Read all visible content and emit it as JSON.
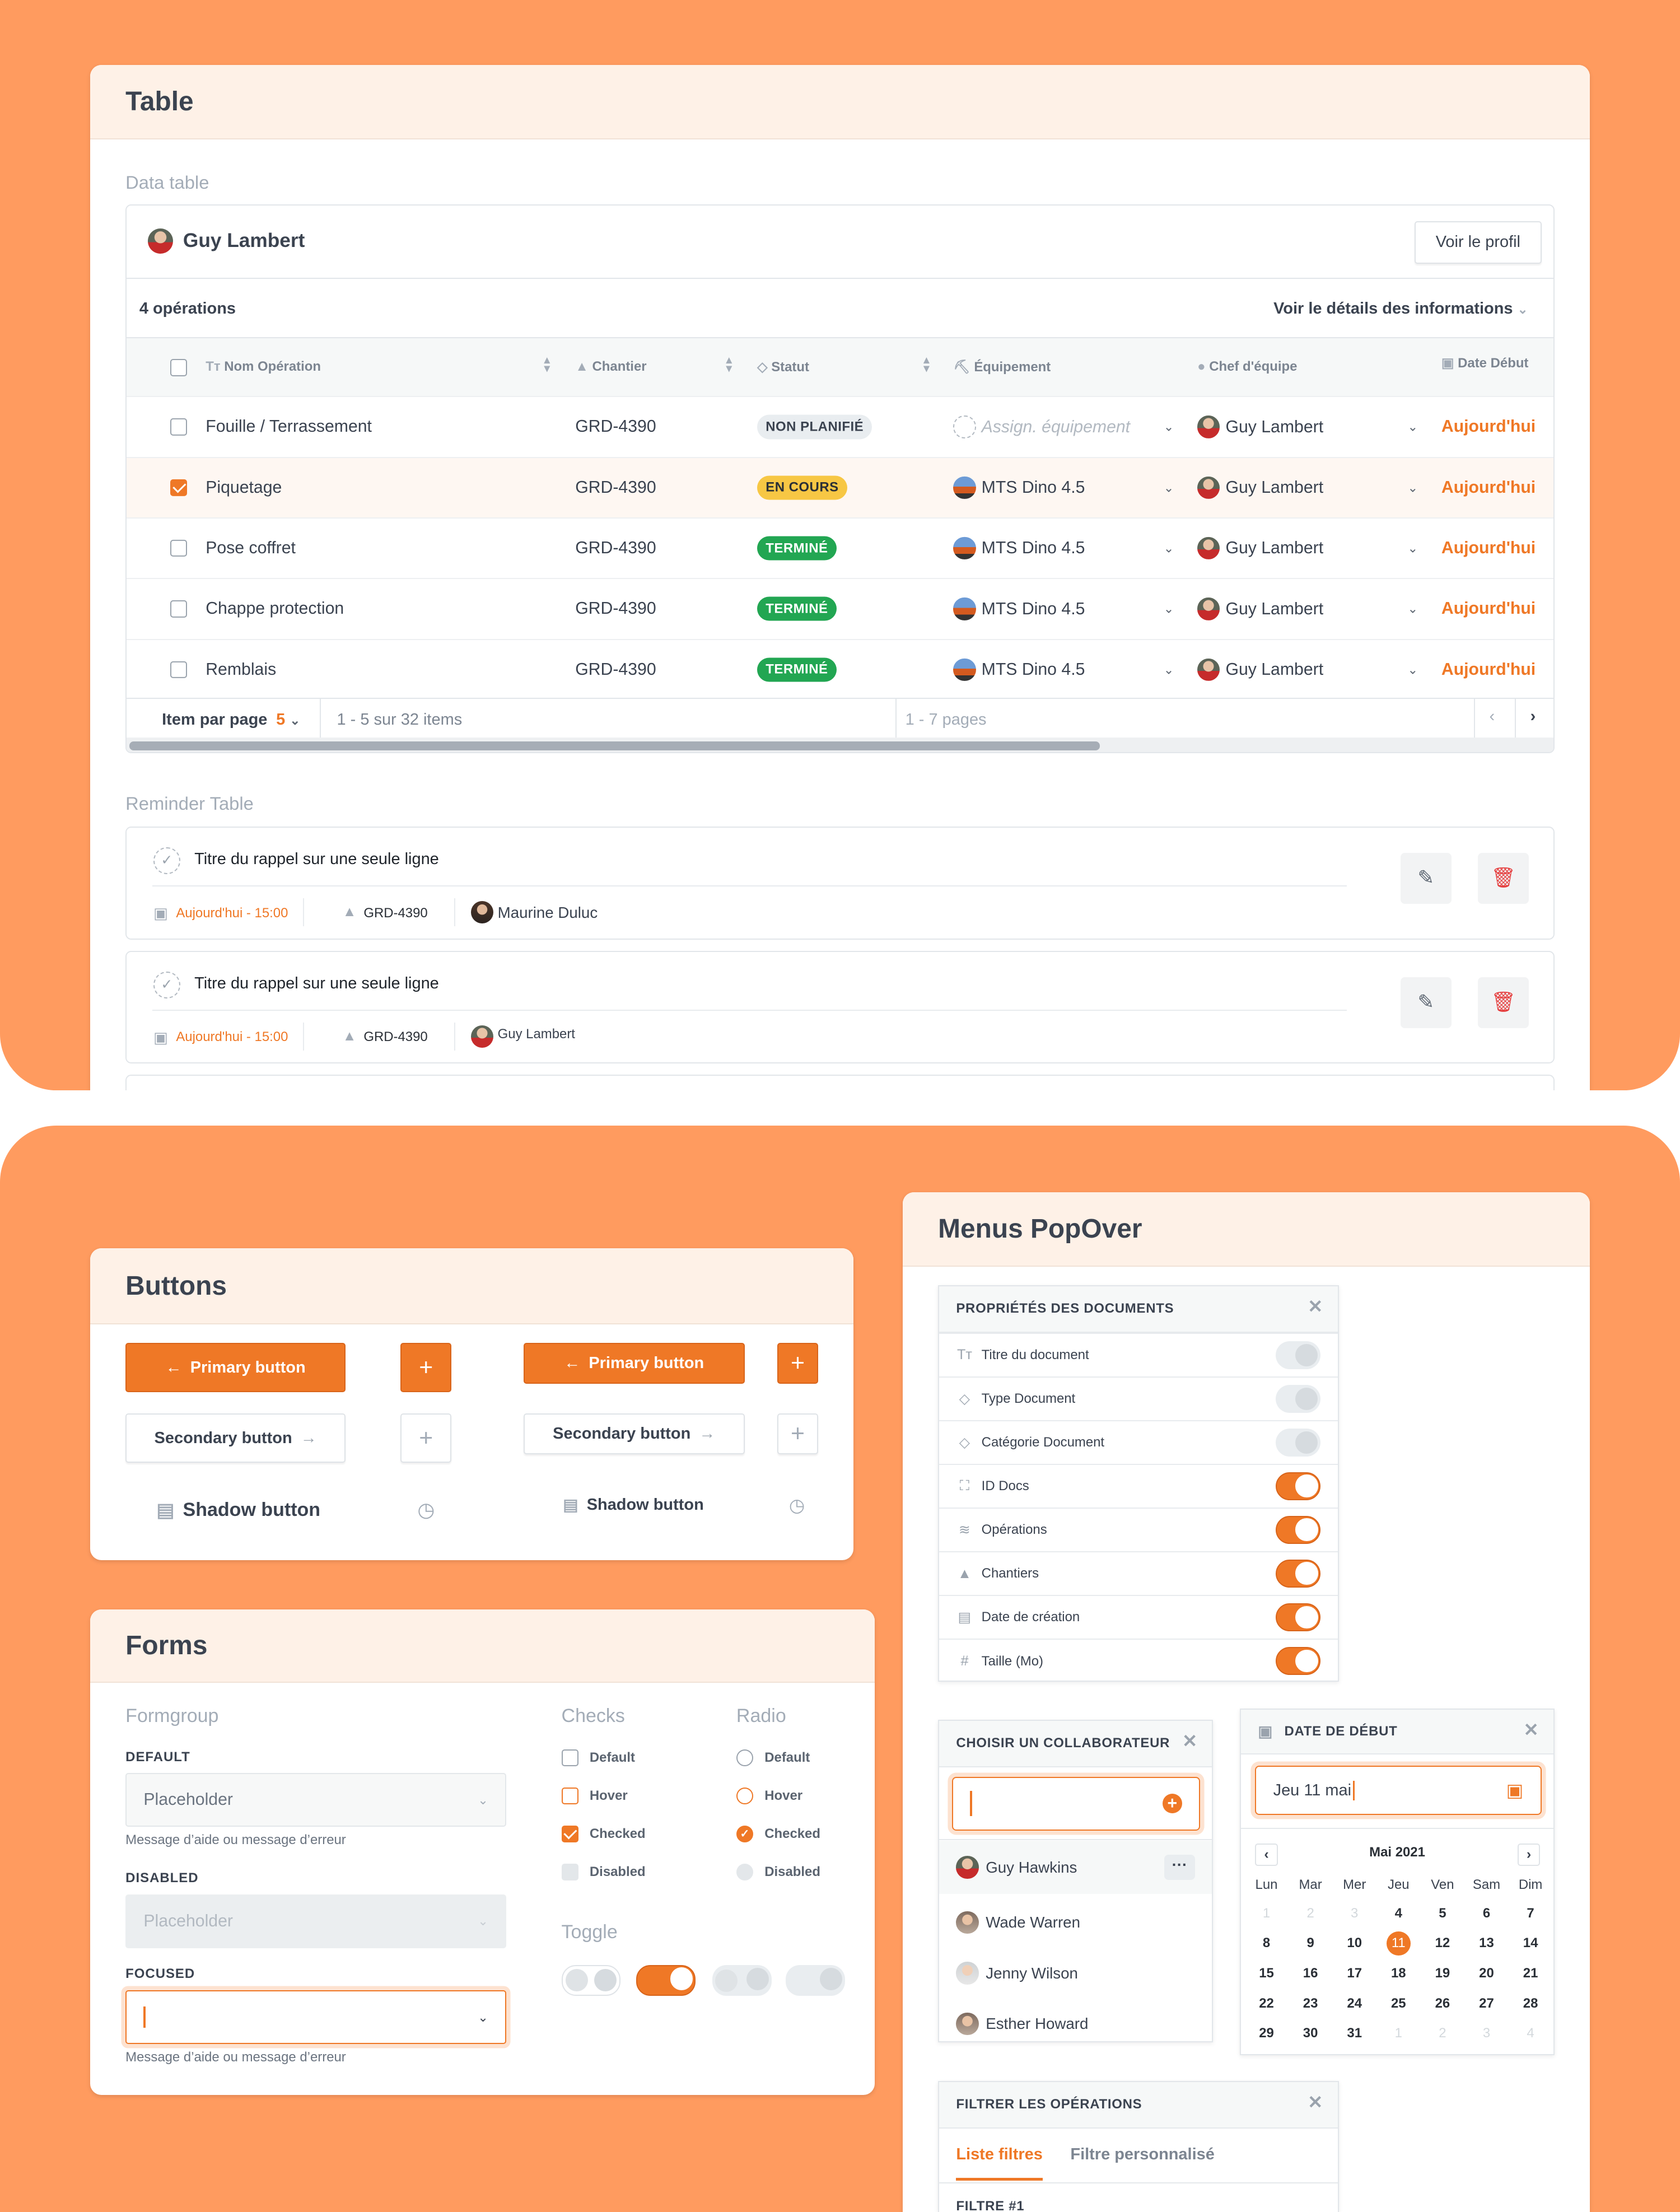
{
  "colors": {
    "accent": "#EF7826",
    "background": "#FF9B5F",
    "header_bg": "#FEF1E7",
    "success": "#22A652",
    "warning": "#F7C744"
  },
  "table_section": {
    "title": "Table",
    "data_table_label": "Data table",
    "user_name": "Guy Lambert",
    "view_profile": "Voir le profil",
    "operations_count": "4 opérations",
    "details_link": "Voir le détails des informations",
    "columns": [
      "Nom Opération",
      "Chantier",
      "Statut",
      "Équipement",
      "Chef d'équipe",
      "Date Début"
    ],
    "rows": [
      {
        "name": "Fouille / Terrassement",
        "chantier": "GRD-4390",
        "status": "NON PLANIFIÉ",
        "status_type": "neutral",
        "equipment": "Assign. équipement",
        "equipment_placeholder": true,
        "chef": "Guy Lambert",
        "date": "Aujourd'hui",
        "checked": false
      },
      {
        "name": "Piquetage",
        "chantier": "GRD-4390",
        "status": "EN COURS",
        "status_type": "warning",
        "equipment": "MTS Dino 4.5",
        "equipment_placeholder": false,
        "chef": "Guy Lambert",
        "date": "Aujourd'hui",
        "checked": true
      },
      {
        "name": "Pose coffret",
        "chantier": "GRD-4390",
        "status": "TERMINÉ",
        "status_type": "success",
        "equipment": "MTS Dino 4.5",
        "equipment_placeholder": false,
        "chef": "Guy Lambert",
        "date": "Aujourd'hui",
        "checked": false
      },
      {
        "name": "Chappe protection",
        "chantier": "GRD-4390",
        "status": "TERMINÉ",
        "status_type": "success",
        "equipment": "MTS Dino 4.5",
        "equipment_placeholder": false,
        "chef": "Guy Lambert",
        "date": "Aujourd'hui",
        "checked": false
      },
      {
        "name": "Remblais",
        "chantier": "GRD-4390",
        "status": "TERMINÉ",
        "status_type": "success",
        "equipment": "MTS Dino 4.5",
        "equipment_placeholder": false,
        "chef": "Guy Lambert",
        "date": "Aujourd'hui",
        "checked": false
      }
    ],
    "pagination": {
      "items_per_page_label": "Item par page",
      "items_per_page": "5",
      "range": "1 - 5 sur 32 items",
      "pages": "1 - 7 pages",
      "prev": "‹",
      "next": "›"
    },
    "horizontal_scroll_position": 0.68,
    "reminder_label": "Reminder Table",
    "reminders": [
      {
        "title": "Titre du rappel sur une seule ligne",
        "date": "Aujourd'hui - 15:00",
        "chantier": "GRD-4390",
        "person": "Maurine Duluc"
      },
      {
        "title": "Titre du rappel sur une seule ligne",
        "date": "Aujourd'hui - 15:00",
        "chantier": "GRD-4390",
        "person": "Guy Lambert"
      }
    ]
  },
  "buttons_section": {
    "title": "Buttons",
    "primary": "Primary button",
    "secondary": "Secondary button",
    "shadow": "Shadow button",
    "plus": "+"
  },
  "forms_section": {
    "title": "Forms",
    "formgroup": "Formgroup",
    "default_label": "DEFAULT",
    "disabled_label": "DISABLED",
    "focused_label": "FOCUSED",
    "placeholder": "Placeholder",
    "help": "Message d’aide ou message d’erreur",
    "checks_title": "Checks",
    "radio_title": "Radio",
    "states": [
      "Default",
      "Hover",
      "Checked",
      "Disabled"
    ],
    "toggle_title": "Toggle"
  },
  "menus_section": {
    "title": "Menus PopOver",
    "properties": {
      "title": "PROPRIÉTÉS DES DOCUMENTS",
      "items": [
        {
          "label": "Titre du document",
          "icon": "text-icon",
          "on": false
        },
        {
          "label": "Type Document",
          "icon": "tag-icon",
          "on": false
        },
        {
          "label": "Catégorie Document",
          "icon": "tag-icon",
          "on": false
        },
        {
          "label": "ID Docs",
          "icon": "scan-icon",
          "on": true
        },
        {
          "label": "Opérations",
          "icon": "layers-icon",
          "on": true
        },
        {
          "label": "Chantiers",
          "icon": "cone-icon",
          "on": true
        },
        {
          "label": "Date de création",
          "icon": "calendar-icon",
          "on": true
        },
        {
          "label": "Taille (Mo)",
          "icon": "hash-icon",
          "on": true
        }
      ]
    },
    "collaborator": {
      "title": "CHOISIR UN COLLABORATEUR",
      "people": [
        "Guy Hawkins",
        "Wade Warren",
        "Jenny Wilson",
        "Esther Howard"
      ],
      "more": "···"
    },
    "date_picker": {
      "title": "DATE DE DÉBUT",
      "value": "Jeu 11 mai",
      "month": "Mai 2021",
      "weekdays": [
        "Lun",
        "Mar",
        "Mer",
        "Jeu",
        "Ven",
        "Sam",
        "Dim"
      ],
      "weeks": [
        [
          "1",
          "2",
          "3",
          "4",
          "5",
          "6",
          "7"
        ],
        [
          "8",
          "9",
          "10",
          "11",
          "12",
          "13",
          "14"
        ],
        [
          "15",
          "16",
          "17",
          "18",
          "19",
          "20",
          "21"
        ],
        [
          "22",
          "23",
          "24",
          "25",
          "26",
          "27",
          "28"
        ],
        [
          "29",
          "30",
          "31",
          "1",
          "2",
          "3",
          "4"
        ]
      ],
      "muted_first": 3,
      "muted_last": 4,
      "selected": "11"
    },
    "filter": {
      "title": "FILTRER LES OPÉRATIONS",
      "tabs": [
        "Liste filtres",
        "Filtre personnalisé"
      ],
      "first_filter": "FILTRE #1"
    }
  }
}
